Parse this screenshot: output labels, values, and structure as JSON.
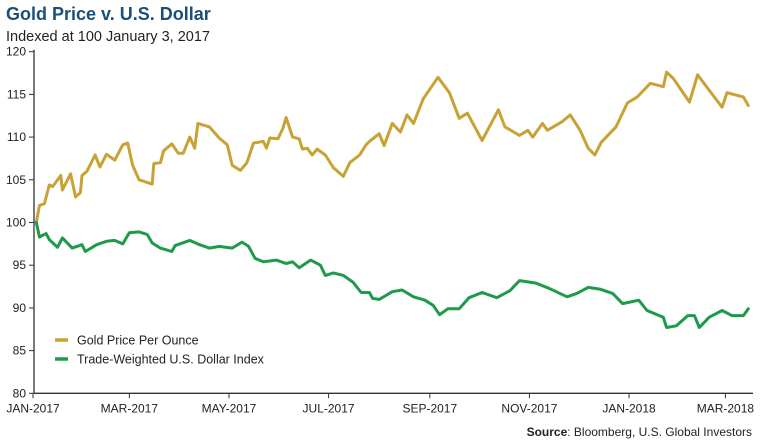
{
  "chart_data": {
    "type": "line",
    "title": "Gold Price v. U.S. Dollar",
    "subtitle": "Indexed at 100 January 3, 2017",
    "source_label": "Source",
    "source_text": ": Bloomberg, U.S. Global Investors",
    "ylim": [
      80,
      120
    ],
    "y_ticks": [
      "80",
      "85",
      "90",
      "95",
      "100",
      "105",
      "110",
      "115",
      "120"
    ],
    "x_ticks": [
      {
        "date": "2017-01-01",
        "label": "JAN-2017"
      },
      {
        "date": "2017-03-01",
        "label": "MAR-2017"
      },
      {
        "date": "2017-05-01",
        "label": "MAY-2017"
      },
      {
        "date": "2017-07-01",
        "label": "JUL-2017"
      },
      {
        "date": "2017-09-01",
        "label": "SEP-2017"
      },
      {
        "date": "2017-11-01",
        "label": "NOV-2017"
      },
      {
        "date": "2018-01-01",
        "label": "JAN-2018"
      },
      {
        "date": "2018-03-01",
        "label": "MAR-2018"
      }
    ],
    "grid": false,
    "legend_position": "bottom-left",
    "series": [
      {
        "name": "Gold Price Per Ounce",
        "color": "#c9a235",
        "points": [
          [
            "2017-01-03",
            100
          ],
          [
            "2017-01-05",
            102
          ],
          [
            "2017-01-08",
            102.2
          ],
          [
            "2017-01-11",
            104.4
          ],
          [
            "2017-01-13",
            104.2
          ],
          [
            "2017-01-18",
            105.5
          ],
          [
            "2017-01-19",
            103.8
          ],
          [
            "2017-01-24",
            105.7
          ],
          [
            "2017-01-27",
            103
          ],
          [
            "2017-01-30",
            103.5
          ],
          [
            "2017-01-31",
            105.5
          ],
          [
            "2017-02-03",
            106
          ],
          [
            "2017-02-08",
            107.9
          ],
          [
            "2017-02-11",
            106.5
          ],
          [
            "2017-02-15",
            108
          ],
          [
            "2017-02-20",
            107.3
          ],
          [
            "2017-02-25",
            109.1
          ],
          [
            "2017-02-28",
            109.3
          ],
          [
            "2017-03-03",
            106.7
          ],
          [
            "2017-03-07",
            105
          ],
          [
            "2017-03-15",
            104.5
          ],
          [
            "2017-03-16",
            106.9
          ],
          [
            "2017-03-20",
            107
          ],
          [
            "2017-03-22",
            108.4
          ],
          [
            "2017-03-27",
            109.2
          ],
          [
            "2017-03-31",
            108.1
          ],
          [
            "2017-04-03",
            108.1
          ],
          [
            "2017-04-07",
            110
          ],
          [
            "2017-04-10",
            108.7
          ],
          [
            "2017-04-12",
            111.6
          ],
          [
            "2017-04-19",
            111.2
          ],
          [
            "2017-04-25",
            109.9
          ],
          [
            "2017-04-30",
            109.1
          ],
          [
            "2017-05-03",
            106.7
          ],
          [
            "2017-05-08",
            106.1
          ],
          [
            "2017-05-12",
            107
          ],
          [
            "2017-05-16",
            109.3
          ],
          [
            "2017-05-22",
            109.5
          ],
          [
            "2017-05-24",
            108.7
          ],
          [
            "2017-05-26",
            109.9
          ],
          [
            "2017-05-31",
            109.8
          ],
          [
            "2017-06-03",
            111
          ],
          [
            "2017-06-05",
            112.3
          ],
          [
            "2017-06-09",
            110
          ],
          [
            "2017-06-13",
            109.8
          ],
          [
            "2017-06-15",
            108.6
          ],
          [
            "2017-06-18",
            108.7
          ],
          [
            "2017-06-21",
            107.9
          ],
          [
            "2017-06-24",
            108.6
          ],
          [
            "2017-06-29",
            107.9
          ],
          [
            "2017-07-04",
            106.4
          ],
          [
            "2017-07-10",
            105.4
          ],
          [
            "2017-07-14",
            107
          ],
          [
            "2017-07-20",
            107.9
          ],
          [
            "2017-07-24",
            109.1
          ],
          [
            "2017-07-26",
            109.5
          ],
          [
            "2017-08-01",
            110.4
          ],
          [
            "2017-08-04",
            109
          ],
          [
            "2017-08-09",
            111.6
          ],
          [
            "2017-08-14",
            110.6
          ],
          [
            "2017-08-18",
            112.6
          ],
          [
            "2017-08-22",
            111.6
          ],
          [
            "2017-08-28",
            114.5
          ],
          [
            "2017-09-06",
            117
          ],
          [
            "2017-09-13",
            115.2
          ],
          [
            "2017-09-19",
            112.2
          ],
          [
            "2017-09-24",
            112.8
          ],
          [
            "2017-10-03",
            109.6
          ],
          [
            "2017-10-13",
            113.2
          ],
          [
            "2017-10-17",
            111.2
          ],
          [
            "2017-10-26",
            110.2
          ],
          [
            "2017-10-31",
            110.8
          ],
          [
            "2017-11-03",
            110
          ],
          [
            "2017-11-09",
            111.6
          ],
          [
            "2017-11-12",
            110.8
          ],
          [
            "2017-11-21",
            111.8
          ],
          [
            "2017-11-26",
            112.6
          ],
          [
            "2017-12-02",
            110.8
          ],
          [
            "2017-12-07",
            108.7
          ],
          [
            "2017-12-11",
            107.9
          ],
          [
            "2017-12-15",
            109.4
          ],
          [
            "2017-12-24",
            111.2
          ],
          [
            "2017-12-31",
            114
          ],
          [
            "2018-01-06",
            114.7
          ],
          [
            "2018-01-14",
            116.3
          ],
          [
            "2018-01-22",
            115.9
          ],
          [
            "2018-01-24",
            117.6
          ],
          [
            "2018-01-28",
            116.9
          ],
          [
            "2018-02-02",
            115.5
          ],
          [
            "2018-02-07",
            114.1
          ],
          [
            "2018-02-12",
            117.3
          ],
          [
            "2018-02-19",
            115.5
          ],
          [
            "2018-02-27",
            113.5
          ],
          [
            "2018-03-02",
            115.2
          ],
          [
            "2018-03-12",
            114.7
          ],
          [
            "2018-03-15",
            113.7
          ]
        ]
      },
      {
        "name": "Trade-Weighted U.S. Dollar Index",
        "color": "#1e9a4a",
        "points": [
          [
            "2017-01-03",
            100
          ],
          [
            "2017-01-05",
            98.3
          ],
          [
            "2017-01-09",
            98.7
          ],
          [
            "2017-01-11",
            98
          ],
          [
            "2017-01-16",
            97.1
          ],
          [
            "2017-01-19",
            98.2
          ],
          [
            "2017-01-25",
            97
          ],
          [
            "2017-01-31",
            97.4
          ],
          [
            "2017-02-02",
            96.6
          ],
          [
            "2017-02-09",
            97.4
          ],
          [
            "2017-02-15",
            97.8
          ],
          [
            "2017-02-20",
            97.9
          ],
          [
            "2017-02-25",
            97.5
          ],
          [
            "2017-03-01",
            98.8
          ],
          [
            "2017-03-07",
            98.9
          ],
          [
            "2017-03-12",
            98.6
          ],
          [
            "2017-03-15",
            97.6
          ],
          [
            "2017-03-20",
            97
          ],
          [
            "2017-03-27",
            96.6
          ],
          [
            "2017-03-29",
            97.3
          ],
          [
            "2017-04-07",
            97.9
          ],
          [
            "2017-04-13",
            97.4
          ],
          [
            "2017-04-19",
            97
          ],
          [
            "2017-04-25",
            97.2
          ],
          [
            "2017-05-03",
            97
          ],
          [
            "2017-05-09",
            97.7
          ],
          [
            "2017-05-13",
            97.2
          ],
          [
            "2017-05-17",
            95.8
          ],
          [
            "2017-05-22",
            95.4
          ],
          [
            "2017-05-30",
            95.6
          ],
          [
            "2017-06-05",
            95.2
          ],
          [
            "2017-06-09",
            95.4
          ],
          [
            "2017-06-13",
            94.7
          ],
          [
            "2017-06-20",
            95.6
          ],
          [
            "2017-06-26",
            95
          ],
          [
            "2017-06-29",
            93.8
          ],
          [
            "2017-07-04",
            94.1
          ],
          [
            "2017-07-10",
            93.8
          ],
          [
            "2017-07-16",
            93
          ],
          [
            "2017-07-21",
            91.8
          ],
          [
            "2017-07-26",
            91.8
          ],
          [
            "2017-07-28",
            91.1
          ],
          [
            "2017-08-01",
            91
          ],
          [
            "2017-08-09",
            91.9
          ],
          [
            "2017-08-15",
            92.1
          ],
          [
            "2017-08-22",
            91.3
          ],
          [
            "2017-08-29",
            90.9
          ],
          [
            "2017-09-03",
            90.3
          ],
          [
            "2017-09-07",
            89.2
          ],
          [
            "2017-09-12",
            89.9
          ],
          [
            "2017-09-19",
            89.9
          ],
          [
            "2017-09-25",
            91.2
          ],
          [
            "2017-10-03",
            91.8
          ],
          [
            "2017-10-12",
            91.2
          ],
          [
            "2017-10-20",
            92
          ],
          [
            "2017-10-26",
            93.2
          ],
          [
            "2017-11-05",
            92.9
          ],
          [
            "2017-11-13",
            92.3
          ],
          [
            "2017-11-24",
            91.3
          ],
          [
            "2017-11-30",
            91.7
          ],
          [
            "2017-12-07",
            92.4
          ],
          [
            "2017-12-14",
            92.2
          ],
          [
            "2017-12-22",
            91.7
          ],
          [
            "2017-12-28",
            90.5
          ],
          [
            "2018-01-07",
            90.9
          ],
          [
            "2018-01-12",
            89.7
          ],
          [
            "2018-01-22",
            88.9
          ],
          [
            "2018-01-24",
            87.7
          ],
          [
            "2018-01-30",
            87.9
          ],
          [
            "2018-02-06",
            89.1
          ],
          [
            "2018-02-10",
            89.1
          ],
          [
            "2018-02-13",
            87.7
          ],
          [
            "2018-02-19",
            88.9
          ],
          [
            "2018-02-27",
            89.7
          ],
          [
            "2018-03-05",
            89.1
          ],
          [
            "2018-03-12",
            89.1
          ],
          [
            "2018-03-15",
            89.9
          ]
        ]
      }
    ]
  }
}
